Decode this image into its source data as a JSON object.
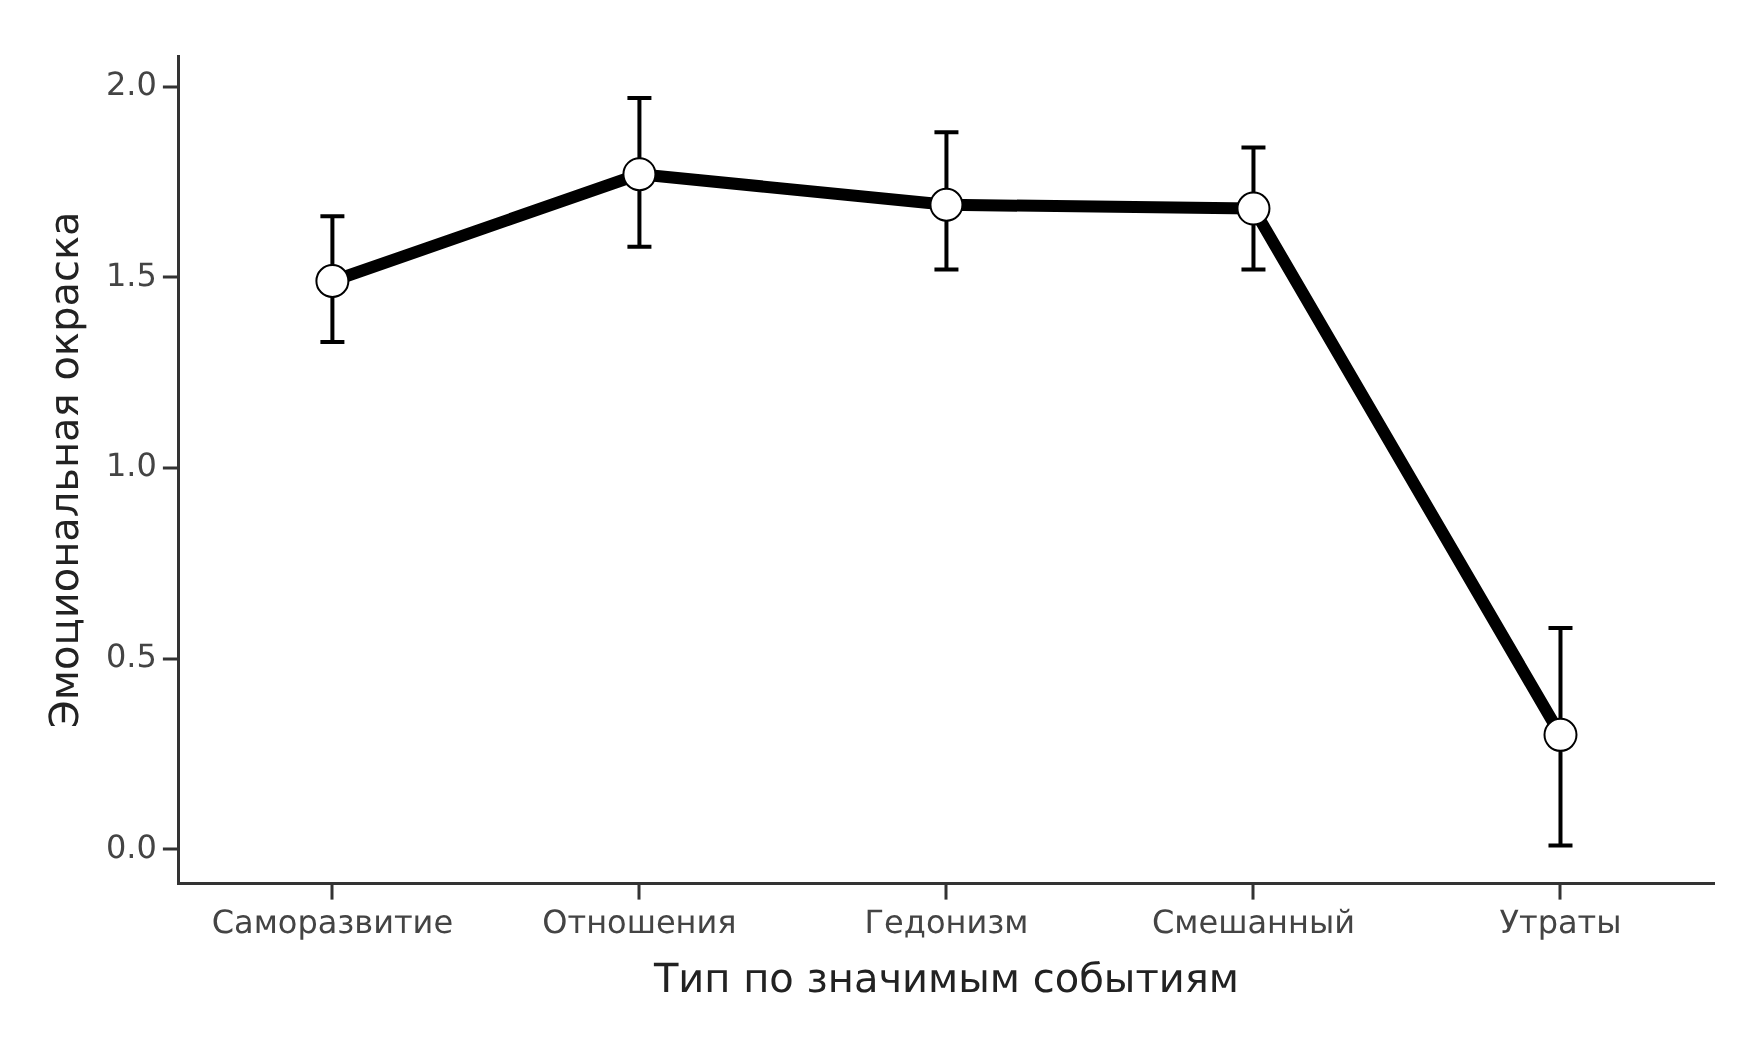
{
  "chart_data": {
    "type": "line",
    "xlabel": "Тип по значимым событиям",
    "ylabel": "Эмоциональная окраска",
    "categories": [
      "Саморазвитие",
      "Отношения",
      "Гедонизм",
      "Смешанный",
      "Утраты"
    ],
    "series": [
      {
        "color": "#000000",
        "values": [
          1.49,
          1.77,
          1.69,
          1.68,
          0.3
        ],
        "errors": [
          [
            1.33,
            1.66
          ],
          [
            1.58,
            1.97
          ],
          [
            1.52,
            1.88
          ],
          [
            1.52,
            1.84
          ],
          [
            0.01,
            0.58
          ]
        ]
      }
    ],
    "ylim": [
      -0.09,
      2.08
    ],
    "yticks": [
      {
        "value": 0,
        "label": "0.0"
      },
      {
        "value": 0.5,
        "label": "0.5"
      },
      {
        "value": 1,
        "label": "1.0"
      },
      {
        "value": 1.5,
        "label": "1.5"
      },
      {
        "value": 2,
        "label": "2.0"
      }
    ],
    "grid": false,
    "legend": false,
    "marker": "circle",
    "line_style": "solid"
  }
}
